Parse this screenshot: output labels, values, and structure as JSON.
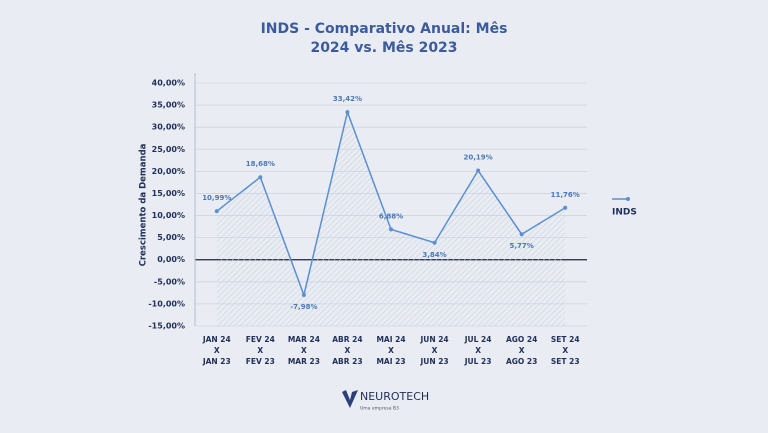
{
  "chart_data": {
    "type": "line",
    "title": "INDS - Comparativo Anual: Mês",
    "subtitle": "2024 vs. Mês 2023",
    "y_label": "Crescimento da Demanda",
    "categories": [
      [
        "JAN 24",
        "X",
        "JAN 23"
      ],
      [
        "FEV 24",
        "X",
        "FEV 23"
      ],
      [
        "MAR 24",
        "X",
        "MAR 23"
      ],
      [
        "ABR 24",
        "X",
        "ABR 23"
      ],
      [
        "MAI 24",
        "X",
        "MAI 23"
      ],
      [
        "JUN 24",
        "X",
        "JUN 23"
      ],
      [
        "JUL 24",
        "X",
        "JUL 23"
      ],
      [
        "AGO 24",
        "X",
        "AGO 23"
      ],
      [
        "SET 24",
        "X",
        "SET 23"
      ]
    ],
    "series": [
      {
        "name": "INDS",
        "color": "#5b8fd1",
        "values": [
          10.99,
          18.68,
          -7.98,
          33.42,
          6.88,
          3.84,
          20.19,
          5.77,
          11.76
        ],
        "value_labels": [
          "10,99%",
          "18,68%",
          "-7,98%",
          "33,42%",
          "6,88%",
          "3,84%",
          "20,19%",
          "5,77%",
          "11,76%"
        ]
      }
    ],
    "ylim": [
      -15,
      40
    ],
    "yticks": [
      {
        "value": -15,
        "label": "-15,00%"
      },
      {
        "value": -10,
        "label": "-10,00%"
      },
      {
        "value": -5,
        "label": "-5,00%"
      },
      {
        "value": 0,
        "label": "0,00%"
      },
      {
        "value": 5,
        "label": "5,00%"
      },
      {
        "value": 10,
        "label": "10,00%"
      },
      {
        "value": 15,
        "label": "15,00%"
      },
      {
        "value": 20,
        "label": "20,00%"
      },
      {
        "value": 25,
        "label": "25,00%"
      },
      {
        "value": 30,
        "label": "30,00%"
      },
      {
        "value": 35,
        "label": "35,00%"
      },
      {
        "value": 40,
        "label": "40,00%"
      }
    ],
    "grid": true,
    "legend": "right"
  },
  "footer": {
    "brand": "NEUROTECH",
    "tagline": "Uma empresa B3"
  }
}
